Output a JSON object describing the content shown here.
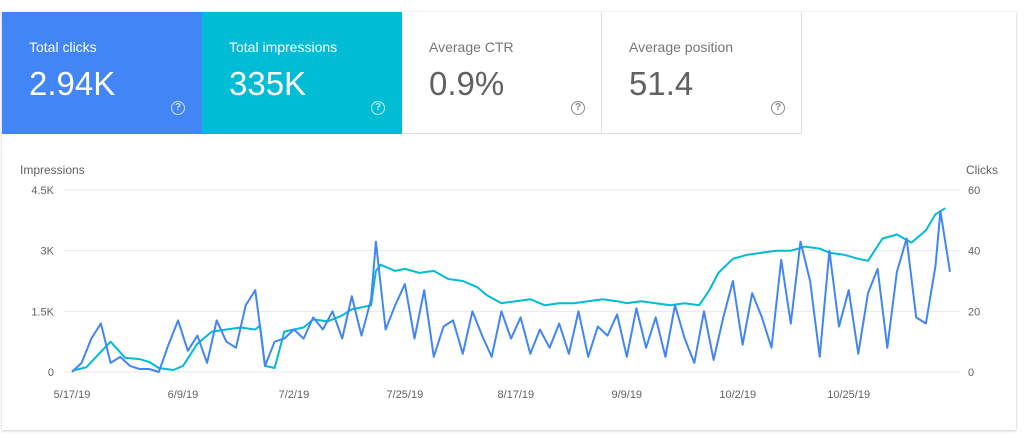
{
  "cards": [
    {
      "key": "clicks",
      "label": "Total clicks",
      "value": "2.94K",
      "help_icon": "help-circle-icon",
      "color": "#4285f4"
    },
    {
      "key": "impr",
      "label": "Total impressions",
      "value": "335K",
      "help_icon": "help-circle-icon",
      "color": "#00bcd4"
    },
    {
      "key": "ctr",
      "label": "Average CTR",
      "value": "0.9%",
      "help_icon": "help-circle-icon"
    },
    {
      "key": "pos",
      "label": "Average position",
      "value": "51.4",
      "help_icon": "help-circle-icon"
    }
  ],
  "chart_data": {
    "type": "line",
    "y_left_label": "Impressions",
    "y_right_label": "Clicks",
    "y_left_ticks": [
      "0",
      "1.5K",
      "3K",
      "4.5K"
    ],
    "y_left_range": [
      0,
      4500
    ],
    "y_right_ticks": [
      "0",
      "20",
      "40",
      "60"
    ],
    "y_right_range": [
      0,
      60
    ],
    "x_range": [
      "2019-05-17",
      "2019-11-15"
    ],
    "x_ticks": [
      {
        "date": "2019-05-17",
        "label": "5/17/19"
      },
      {
        "date": "2019-06-09",
        "label": "6/9/19"
      },
      {
        "date": "2019-07-02",
        "label": "7/2/19"
      },
      {
        "date": "2019-07-25",
        "label": "7/25/19"
      },
      {
        "date": "2019-08-17",
        "label": "8/17/19"
      },
      {
        "date": "2019-09-09",
        "label": "9/9/19"
      },
      {
        "date": "2019-10-02",
        "label": "10/2/19"
      },
      {
        "date": "2019-10-25",
        "label": "10/25/19"
      }
    ],
    "grid": true,
    "series": [
      {
        "axis": "left",
        "color": "#00bcd4",
        "points": [
          [
            "2019-05-17",
            30
          ],
          [
            "2019-05-20",
            120
          ],
          [
            "2019-05-23",
            500
          ],
          [
            "2019-05-25",
            750
          ],
          [
            "2019-05-28",
            350
          ],
          [
            "2019-05-31",
            320
          ],
          [
            "2019-06-02",
            250
          ],
          [
            "2019-06-04",
            100
          ],
          [
            "2019-06-07",
            50
          ],
          [
            "2019-06-09",
            150
          ],
          [
            "2019-06-12",
            700
          ],
          [
            "2019-06-15",
            1000
          ],
          [
            "2019-06-18",
            1050
          ],
          [
            "2019-06-21",
            1100
          ],
          [
            "2019-06-24",
            1050
          ],
          [
            "2019-06-25",
            1150
          ],
          [
            "2019-06-26",
            150
          ],
          [
            "2019-06-28",
            100
          ],
          [
            "2019-06-30",
            1000
          ],
          [
            "2019-07-02",
            1050
          ],
          [
            "2019-07-04",
            1100
          ],
          [
            "2019-07-06",
            1300
          ],
          [
            "2019-07-09",
            1250
          ],
          [
            "2019-07-12",
            1400
          ],
          [
            "2019-07-14",
            1550
          ],
          [
            "2019-07-16",
            1600
          ],
          [
            "2019-07-18",
            1650
          ],
          [
            "2019-07-19",
            2500
          ],
          [
            "2019-07-20",
            2650
          ],
          [
            "2019-07-23",
            2500
          ],
          [
            "2019-07-25",
            2550
          ],
          [
            "2019-07-28",
            2450
          ],
          [
            "2019-07-31",
            2500
          ],
          [
            "2019-08-03",
            2300
          ],
          [
            "2019-08-06",
            2250
          ],
          [
            "2019-08-09",
            2100
          ],
          [
            "2019-08-11",
            1900
          ],
          [
            "2019-08-14",
            1700
          ],
          [
            "2019-08-17",
            1750
          ],
          [
            "2019-08-20",
            1800
          ],
          [
            "2019-08-23",
            1650
          ],
          [
            "2019-08-26",
            1700
          ],
          [
            "2019-08-29",
            1700
          ],
          [
            "2019-09-01",
            1750
          ],
          [
            "2019-09-04",
            1800
          ],
          [
            "2019-09-07",
            1750
          ],
          [
            "2019-09-09",
            1700
          ],
          [
            "2019-09-12",
            1750
          ],
          [
            "2019-09-15",
            1700
          ],
          [
            "2019-09-18",
            1650
          ],
          [
            "2019-09-21",
            1700
          ],
          [
            "2019-09-24",
            1650
          ],
          [
            "2019-09-26",
            2000
          ],
          [
            "2019-09-28",
            2450
          ],
          [
            "2019-10-01",
            2800
          ],
          [
            "2019-10-04",
            2900
          ],
          [
            "2019-10-07",
            2950
          ],
          [
            "2019-10-10",
            3000
          ],
          [
            "2019-10-13",
            3000
          ],
          [
            "2019-10-16",
            3100
          ],
          [
            "2019-10-19",
            3050
          ],
          [
            "2019-10-21",
            2950
          ],
          [
            "2019-10-24",
            2900
          ],
          [
            "2019-10-27",
            2800
          ],
          [
            "2019-10-29",
            2750
          ],
          [
            "2019-11-01",
            3300
          ],
          [
            "2019-11-04",
            3400
          ],
          [
            "2019-11-07",
            3200
          ],
          [
            "2019-11-10",
            3500
          ],
          [
            "2019-11-12",
            3900
          ],
          [
            "2019-11-14",
            4050
          ]
        ]
      },
      {
        "axis": "right",
        "color": "#4285f4",
        "points": [
          [
            "2019-05-17",
            0
          ],
          [
            "2019-05-19",
            3
          ],
          [
            "2019-05-21",
            11
          ],
          [
            "2019-05-23",
            16
          ],
          [
            "2019-05-25",
            3
          ],
          [
            "2019-05-27",
            5
          ],
          [
            "2019-05-29",
            2
          ],
          [
            "2019-05-31",
            1
          ],
          [
            "2019-06-02",
            1
          ],
          [
            "2019-06-04",
            0
          ],
          [
            "2019-06-06",
            9
          ],
          [
            "2019-06-08",
            17
          ],
          [
            "2019-06-10",
            7
          ],
          [
            "2019-06-12",
            12
          ],
          [
            "2019-06-14",
            3
          ],
          [
            "2019-06-16",
            17
          ],
          [
            "2019-06-18",
            10
          ],
          [
            "2019-06-20",
            8
          ],
          [
            "2019-06-22",
            22
          ],
          [
            "2019-06-24",
            27
          ],
          [
            "2019-06-26",
            2
          ],
          [
            "2019-06-28",
            10
          ],
          [
            "2019-06-30",
            11
          ],
          [
            "2019-07-02",
            14
          ],
          [
            "2019-07-04",
            11
          ],
          [
            "2019-07-06",
            18
          ],
          [
            "2019-07-08",
            14
          ],
          [
            "2019-07-10",
            20
          ],
          [
            "2019-07-12",
            11
          ],
          [
            "2019-07-14",
            25
          ],
          [
            "2019-07-16",
            12
          ],
          [
            "2019-07-18",
            24
          ],
          [
            "2019-07-19",
            43
          ],
          [
            "2019-07-21",
            14
          ],
          [
            "2019-07-23",
            22
          ],
          [
            "2019-07-25",
            29
          ],
          [
            "2019-07-27",
            11
          ],
          [
            "2019-07-29",
            27
          ],
          [
            "2019-07-31",
            5
          ],
          [
            "2019-08-02",
            15
          ],
          [
            "2019-08-04",
            17
          ],
          [
            "2019-08-06",
            6
          ],
          [
            "2019-08-08",
            20
          ],
          [
            "2019-08-10",
            12
          ],
          [
            "2019-08-12",
            5
          ],
          [
            "2019-08-14",
            20
          ],
          [
            "2019-08-16",
            11
          ],
          [
            "2019-08-18",
            18
          ],
          [
            "2019-08-20",
            6
          ],
          [
            "2019-08-22",
            14
          ],
          [
            "2019-08-24",
            8
          ],
          [
            "2019-08-26",
            16
          ],
          [
            "2019-08-28",
            6
          ],
          [
            "2019-08-30",
            20
          ],
          [
            "2019-09-01",
            5
          ],
          [
            "2019-09-03",
            15
          ],
          [
            "2019-09-05",
            12
          ],
          [
            "2019-09-07",
            19
          ],
          [
            "2019-09-09",
            5
          ],
          [
            "2019-09-11",
            21
          ],
          [
            "2019-09-13",
            8
          ],
          [
            "2019-09-15",
            18
          ],
          [
            "2019-09-17",
            5
          ],
          [
            "2019-09-19",
            22
          ],
          [
            "2019-09-21",
            11
          ],
          [
            "2019-09-23",
            3
          ],
          [
            "2019-09-25",
            20
          ],
          [
            "2019-09-27",
            4
          ],
          [
            "2019-09-29",
            18
          ],
          [
            "2019-10-01",
            30
          ],
          [
            "2019-10-03",
            9
          ],
          [
            "2019-10-05",
            26
          ],
          [
            "2019-10-07",
            18
          ],
          [
            "2019-10-09",
            8
          ],
          [
            "2019-10-11",
            37
          ],
          [
            "2019-10-13",
            16
          ],
          [
            "2019-10-15",
            43
          ],
          [
            "2019-10-17",
            30
          ],
          [
            "2019-10-19",
            5
          ],
          [
            "2019-10-21",
            40
          ],
          [
            "2019-10-23",
            15
          ],
          [
            "2019-10-25",
            27
          ],
          [
            "2019-10-27",
            6
          ],
          [
            "2019-10-29",
            26
          ],
          [
            "2019-10-31",
            34
          ],
          [
            "2019-11-02",
            8
          ],
          [
            "2019-11-04",
            33
          ],
          [
            "2019-11-06",
            44
          ],
          [
            "2019-11-08",
            18
          ],
          [
            "2019-11-10",
            16
          ],
          [
            "2019-11-12",
            35
          ],
          [
            "2019-11-13",
            53
          ],
          [
            "2019-11-15",
            33
          ]
        ]
      }
    ]
  }
}
